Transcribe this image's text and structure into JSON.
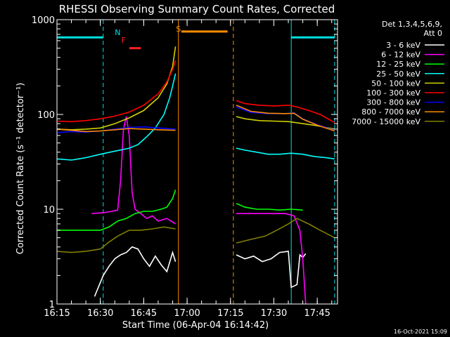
{
  "chart_data": {
    "type": "line",
    "title": "RHESSI Observing Summary Count Rates, Corrected",
    "xlabel": "Start Time (06-Apr-04 16:14:42)",
    "ylabel": "Corrected Count Rate (s⁻¹ detector⁻¹)",
    "yscale": "log",
    "ylim": [
      1,
      1000
    ],
    "xlim": [
      "16:15",
      "17:52"
    ],
    "x_ticks": [
      "16:15",
      "16:30",
      "16:45",
      "17:00",
      "17:15",
      "17:30",
      "17:45"
    ],
    "y_ticks": [
      "1",
      "10",
      "100",
      "1000"
    ],
    "legend_header": [
      "Det 1,3,4,5,6,9,",
      "Att 0"
    ],
    "legend_position": "right",
    "footer": "16-Oct-2021 15:09",
    "annotations": [
      {
        "text": "N",
        "color": "#00e0e0",
        "at": "16:36"
      },
      {
        "text": "F",
        "color": "#ff2020",
        "at": "16:38"
      },
      {
        "text": "S",
        "color": "#ff8c00",
        "at": "16:57"
      }
    ],
    "bars": [
      {
        "color": "#00e0e0",
        "from": "16:15",
        "to": "16:31",
        "level": 650
      },
      {
        "color": "#ff2020",
        "from": "16:40",
        "to": "16:44",
        "level": 500
      },
      {
        "color": "#ff8c00",
        "from": "16:58",
        "to": "17:14",
        "level": 750
      },
      {
        "color": "#00e0e0",
        "from": "17:36",
        "to": "17:51",
        "level": 650
      }
    ],
    "vlines": [
      {
        "at": "16:31",
        "color": "#00e0e0",
        "style": "dashed"
      },
      {
        "at": "16:57",
        "color": "#ff8c00",
        "style": "solid"
      },
      {
        "at": "17:16",
        "color": "#ff8c00",
        "style": "dashed"
      },
      {
        "at": "17:36",
        "color": "#00e0e0",
        "style": "solid"
      },
      {
        "at": "17:51",
        "color": "#00e0e0",
        "style": "dashed"
      }
    ],
    "series": [
      {
        "name": "3 - 6 keV",
        "color": "#ffffff",
        "points": [
          [
            "16:28",
            1.2
          ],
          [
            "16:31",
            2
          ],
          [
            "16:33",
            2.5
          ],
          [
            "16:35",
            3
          ],
          [
            "16:37",
            3.3
          ],
          [
            "16:39",
            3.5
          ],
          [
            "16:41",
            4
          ],
          [
            "16:43",
            3.8
          ],
          [
            "16:45",
            3
          ],
          [
            "16:47",
            2.5
          ],
          [
            "16:49",
            3.2
          ],
          [
            "16:51",
            2.6
          ],
          [
            "16:53",
            2.2
          ],
          [
            "16:55",
            3.5
          ],
          [
            "16:56",
            2.8
          ],
          null,
          [
            "17:17",
            3.3
          ],
          [
            "17:20",
            3
          ],
          [
            "17:23",
            3.2
          ],
          [
            "17:26",
            2.8
          ],
          [
            "17:29",
            3
          ],
          [
            "17:32",
            3.5
          ],
          [
            "17:35",
            3.6
          ],
          [
            "17:36",
            1.5
          ],
          [
            "17:38",
            1.6
          ],
          [
            "17:39",
            3.3
          ],
          [
            "17:40",
            3.1
          ],
          [
            "17:41",
            3.4
          ]
        ]
      },
      {
        "name": "6 - 12 keV",
        "color": "#ff00ff",
        "points": [
          [
            "16:27",
            9
          ],
          [
            "16:31",
            9.2
          ],
          [
            "16:34",
            9.5
          ],
          [
            "16:36",
            9.8
          ],
          [
            "16:37",
            20
          ],
          [
            "16:38",
            70
          ],
          [
            "16:39",
            95
          ],
          [
            "16:40",
            60
          ],
          [
            "16:41",
            15
          ],
          [
            "16:42",
            10
          ],
          [
            "16:44",
            9
          ],
          [
            "16:46",
            8
          ],
          [
            "16:48",
            8.5
          ],
          [
            "16:50",
            7.5
          ],
          [
            "16:53",
            8
          ],
          [
            "16:56",
            7
          ],
          null,
          [
            "17:17",
            9
          ],
          [
            "17:22",
            9
          ],
          [
            "17:28",
            9
          ],
          [
            "17:34",
            9
          ],
          [
            "17:37",
            8.5
          ],
          [
            "17:39",
            6
          ],
          [
            "17:40",
            3
          ],
          [
            "17:41",
            1
          ]
        ]
      },
      {
        "name": "12 - 25 keV",
        "color": "#00ff00",
        "points": [
          [
            "16:15",
            6
          ],
          [
            "16:20",
            6
          ],
          [
            "16:25",
            6
          ],
          [
            "16:30",
            6
          ],
          [
            "16:33",
            6.5
          ],
          [
            "16:36",
            7.5
          ],
          [
            "16:39",
            8
          ],
          [
            "16:42",
            9
          ],
          [
            "16:45",
            9.5
          ],
          [
            "16:48",
            9.5
          ],
          [
            "16:51",
            10
          ],
          [
            "16:53",
            10.5
          ],
          [
            "16:55",
            13
          ],
          [
            "16:56",
            16
          ],
          null,
          [
            "17:17",
            11.5
          ],
          [
            "17:20",
            10.5
          ],
          [
            "17:24",
            10
          ],
          [
            "17:28",
            10
          ],
          [
            "17:32",
            9.8
          ],
          [
            "17:36",
            10
          ],
          [
            "17:40",
            9.8
          ]
        ]
      },
      {
        "name": "25 - 50 keV",
        "color": "#00ffff",
        "points": [
          [
            "16:15",
            34
          ],
          [
            "16:20",
            33
          ],
          [
            "16:25",
            35
          ],
          [
            "16:30",
            38
          ],
          [
            "16:35",
            41
          ],
          [
            "16:40",
            44
          ],
          [
            "16:43",
            48
          ],
          [
            "16:46",
            58
          ],
          [
            "16:49",
            72
          ],
          [
            "16:52",
            100
          ],
          [
            "16:54",
            150
          ],
          [
            "16:55",
            200
          ],
          [
            "16:56",
            270
          ],
          null,
          [
            "17:17",
            44
          ],
          [
            "17:20",
            42
          ],
          [
            "17:24",
            40
          ],
          [
            "17:28",
            38
          ],
          [
            "17:32",
            38
          ],
          [
            "17:36",
            39
          ],
          [
            "17:40",
            38
          ],
          [
            "17:44",
            36
          ],
          [
            "17:48",
            35
          ],
          [
            "17:51",
            34
          ]
        ]
      },
      {
        "name": "50 - 100 keV",
        "color": "#d0d000",
        "points": [
          [
            "16:15",
            70
          ],
          [
            "16:20",
            69
          ],
          [
            "16:25",
            70
          ],
          [
            "16:30",
            72
          ],
          [
            "16:35",
            80
          ],
          [
            "16:40",
            92
          ],
          [
            "16:45",
            110
          ],
          [
            "16:50",
            150
          ],
          [
            "16:53",
            210
          ],
          [
            "16:55",
            320
          ],
          [
            "16:56",
            520
          ],
          null,
          [
            "17:17",
            95
          ],
          [
            "17:20",
            90
          ],
          [
            "17:25",
            86
          ],
          [
            "17:30",
            85
          ],
          [
            "17:35",
            84
          ],
          [
            "17:40",
            80
          ],
          [
            "17:45",
            76
          ],
          [
            "17:51",
            70
          ]
        ]
      },
      {
        "name": "100 - 300 keV",
        "color": "#ff0000",
        "points": [
          [
            "16:15",
            85
          ],
          [
            "16:20",
            84
          ],
          [
            "16:25",
            86
          ],
          [
            "16:30",
            90
          ],
          [
            "16:35",
            96
          ],
          [
            "16:40",
            106
          ],
          [
            "16:45",
            125
          ],
          [
            "16:50",
            165
          ],
          [
            "16:53",
            220
          ],
          [
            "16:55",
            300
          ],
          [
            "16:56",
            370
          ],
          null,
          [
            "17:17",
            140
          ],
          [
            "17:20",
            130
          ],
          [
            "17:25",
            125
          ],
          [
            "17:30",
            123
          ],
          [
            "17:35",
            125
          ],
          [
            "17:38",
            120
          ],
          [
            "17:42",
            110
          ],
          [
            "17:46",
            100
          ],
          [
            "17:51",
            82
          ]
        ]
      },
      {
        "name": "300 - 800 keV",
        "color": "#0000ff",
        "points": [
          [
            "16:15",
            64
          ],
          [
            "16:20",
            66
          ],
          [
            "16:25",
            65
          ],
          [
            "16:30",
            67
          ],
          [
            "16:35",
            70
          ],
          [
            "16:40",
            73
          ],
          [
            "16:45",
            74
          ],
          [
            "16:50",
            72
          ],
          [
            "16:56",
            70
          ],
          null,
          [
            "17:17",
            120
          ],
          [
            "17:22",
            105
          ],
          [
            "17:28",
            102
          ],
          [
            "17:34",
            102
          ],
          [
            "17:37",
            104
          ],
          [
            "17:40",
            90
          ],
          [
            "17:45",
            78
          ],
          [
            "17:51",
            68
          ]
        ]
      },
      {
        "name": "800 - 7000 keV",
        "color": "#ff8c00",
        "points": [
          [
            "16:15",
            70
          ],
          [
            "16:20",
            68
          ],
          [
            "16:25",
            66
          ],
          [
            "16:30",
            67
          ],
          [
            "16:35",
            69
          ],
          [
            "16:40",
            71
          ],
          [
            "16:45",
            70
          ],
          [
            "16:50",
            69
          ],
          [
            "16:56",
            68
          ],
          null,
          [
            "17:17",
            125
          ],
          [
            "17:22",
            108
          ],
          [
            "17:28",
            103
          ],
          [
            "17:34",
            102
          ],
          [
            "17:37",
            103
          ],
          [
            "17:40",
            89
          ],
          [
            "17:45",
            77
          ],
          [
            "17:51",
            67
          ]
        ]
      },
      {
        "name": "7000 - 15000 keV",
        "color": "#808000",
        "points": [
          [
            "16:15",
            3.6
          ],
          [
            "16:20",
            3.5
          ],
          [
            "16:25",
            3.6
          ],
          [
            "16:30",
            3.8
          ],
          [
            "16:33",
            4.5
          ],
          [
            "16:36",
            5.2
          ],
          [
            "16:40",
            6
          ],
          [
            "16:44",
            6
          ],
          [
            "16:48",
            6.2
          ],
          [
            "16:52",
            6.5
          ],
          [
            "16:56",
            6.2
          ],
          null,
          [
            "17:17",
            4.4
          ],
          [
            "17:22",
            4.8
          ],
          [
            "17:27",
            5.2
          ],
          [
            "17:31",
            6
          ],
          [
            "17:35",
            7
          ],
          [
            "17:38",
            8
          ],
          [
            "17:42",
            7
          ],
          [
            "17:46",
            6
          ],
          [
            "17:51",
            5
          ]
        ]
      }
    ]
  }
}
